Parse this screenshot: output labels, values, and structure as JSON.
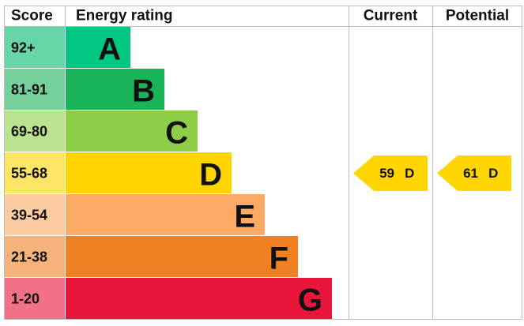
{
  "header": {
    "score": "Score",
    "rating": "Energy rating",
    "current": "Current",
    "potential": "Potential"
  },
  "bands": [
    {
      "score": "92+",
      "letter": "A",
      "color": "#00c781",
      "light": "#66d6a8"
    },
    {
      "score": "81-91",
      "letter": "B",
      "color": "#19b459",
      "light": "#75d09b"
    },
    {
      "score": "69-80",
      "letter": "C",
      "color": "#8dce46",
      "light": "#bbe290"
    },
    {
      "score": "55-68",
      "letter": "D",
      "color": "#ffd500",
      "light": "#ffe566"
    },
    {
      "score": "39-54",
      "letter": "E",
      "color": "#fcaa65",
      "light": "#fdcca3"
    },
    {
      "score": "21-38",
      "letter": "F",
      "color": "#ef8023",
      "light": "#f5b37b"
    },
    {
      "score": "1-20",
      "letter": "G",
      "color": "#e9153b",
      "light": "#f27189"
    }
  ],
  "current": {
    "value": 59,
    "rating": "D"
  },
  "potential": {
    "value": 61,
    "rating": "D"
  }
}
